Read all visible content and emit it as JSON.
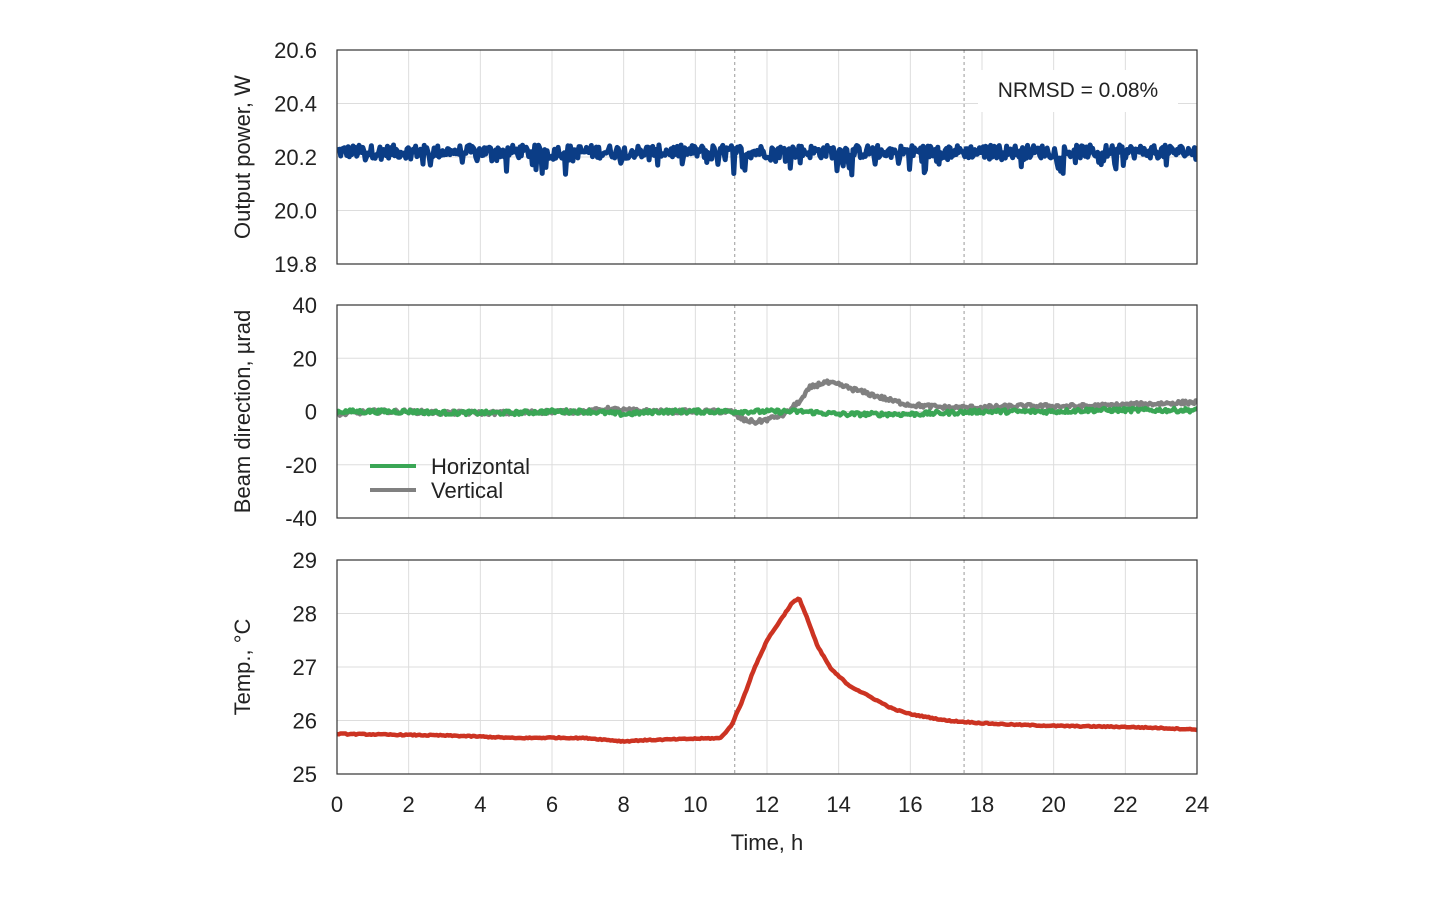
{
  "figure": {
    "xlabel": "Time, h",
    "x_tick_labels": [
      "0",
      "2",
      "4",
      "6",
      "8",
      "10",
      "12",
      "14",
      "16",
      "18",
      "20",
      "22",
      "24"
    ],
    "event_markers_h": [
      11.1,
      17.5
    ]
  },
  "chart_data": [
    {
      "type": "line",
      "ylabel": "Output power, W",
      "xlim": [
        0,
        24
      ],
      "ylim": [
        19.8,
        20.6
      ],
      "y_tick_labels": [
        "20.6",
        "20.4",
        "20.2",
        "20.0",
        "19.8"
      ],
      "grid": true,
      "annotation": "NRMSD = 0.08%",
      "series": [
        {
          "color": "#0b3d86",
          "mean": 20.22,
          "noise_band": [
            20.13,
            20.25
          ],
          "x": [
            0,
            24
          ],
          "y": [
            20.22,
            20.22
          ]
        }
      ]
    },
    {
      "type": "line",
      "ylabel": "Beam direction, µrad",
      "xlim": [
        0,
        24
      ],
      "ylim": [
        -40,
        40
      ],
      "y_tick_labels": [
        "40",
        "20",
        "0",
        "-20",
        "-40"
      ],
      "grid": true,
      "legend_position": "bottom-left",
      "series": [
        {
          "name": "Horizontal",
          "color": "#3aa655",
          "x": [
            0,
            1,
            2,
            3,
            4,
            5,
            6,
            7,
            8,
            9,
            10,
            11,
            12,
            13,
            14,
            15,
            16,
            17,
            18,
            19,
            20,
            21,
            22,
            23,
            24
          ],
          "y": [
            0,
            0,
            0,
            -0.5,
            -0.5,
            -0.5,
            0,
            0,
            -1,
            0,
            0,
            0,
            0,
            0,
            -1,
            -1,
            -1,
            -0.5,
            0,
            0,
            0,
            0.5,
            0.5,
            0.5,
            0.5
          ]
        },
        {
          "name": "Vertical",
          "color": "#808080",
          "x": [
            0,
            1,
            2,
            3,
            4,
            5,
            6,
            7,
            7.5,
            8,
            9,
            10,
            11,
            11.3,
            11.7,
            12,
            12.5,
            13,
            13.2,
            13.6,
            14,
            14.5,
            15,
            15.5,
            16,
            16.5,
            17,
            18,
            19,
            20,
            21,
            22,
            23,
            24
          ],
          "y": [
            -1,
            0,
            0,
            -0.5,
            -0.5,
            -0.5,
            0,
            0,
            1,
            0.5,
            0,
            0,
            0,
            -3,
            -4,
            -3,
            -1,
            5,
            9,
            11,
            10,
            8,
            6,
            4,
            2.5,
            2,
            1.5,
            1.5,
            2,
            2,
            2,
            2.5,
            3,
            3.5
          ]
        }
      ]
    },
    {
      "type": "line",
      "ylabel": "Temp., °C",
      "xlim": [
        0,
        24
      ],
      "ylim": [
        25,
        29
      ],
      "y_tick_labels": [
        "29",
        "28",
        "27",
        "26",
        "25"
      ],
      "grid": true,
      "series": [
        {
          "color": "#cc3322",
          "x": [
            0,
            1,
            2,
            3,
            4,
            5,
            6,
            7,
            7.5,
            8,
            8.5,
            9,
            10,
            10.7,
            11,
            11.3,
            11.6,
            12,
            12.4,
            12.7,
            12.9,
            13.1,
            13.4,
            13.8,
            14.3,
            15,
            15.5,
            16,
            17,
            18,
            19,
            20,
            21,
            22,
            23,
            24
          ],
          "y": [
            25.75,
            25.74,
            25.73,
            25.72,
            25.7,
            25.67,
            25.68,
            25.67,
            25.64,
            25.61,
            25.63,
            25.64,
            25.66,
            25.67,
            25.9,
            26.35,
            26.9,
            27.5,
            27.9,
            28.2,
            28.28,
            27.95,
            27.4,
            26.95,
            26.65,
            26.4,
            26.22,
            26.12,
            26.0,
            25.95,
            25.92,
            25.9,
            25.89,
            25.88,
            25.86,
            25.83
          ]
        }
      ]
    }
  ]
}
